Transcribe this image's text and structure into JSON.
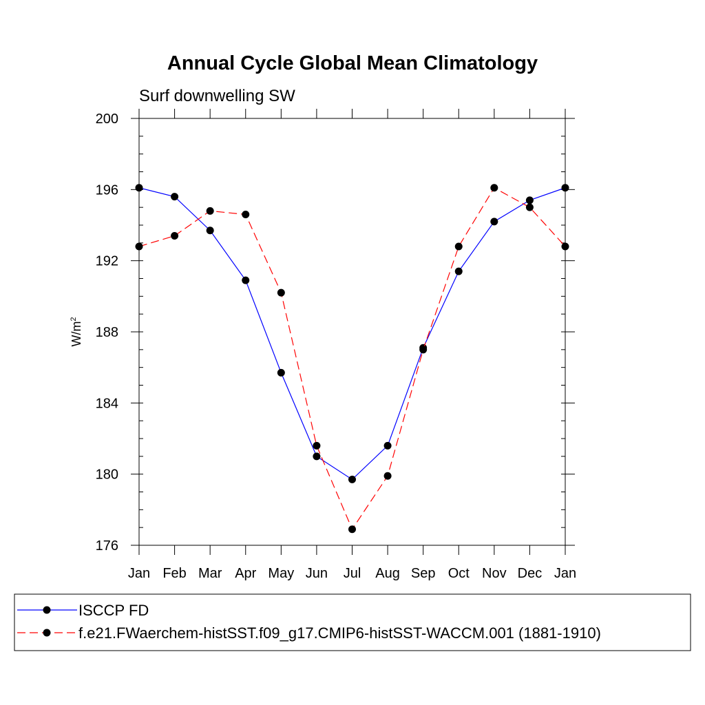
{
  "chart_data": {
    "type": "line",
    "title": "Annual Cycle Global Mean Climatology",
    "subtitle": "Surf downwelling SW",
    "ylabel_base": "W/m",
    "ylabel_sup": "2",
    "xlabel": "",
    "categories": [
      "Jan",
      "Feb",
      "Mar",
      "Apr",
      "May",
      "Jun",
      "Jul",
      "Aug",
      "Sep",
      "Oct",
      "Nov",
      "Dec",
      "Jan"
    ],
    "ylim": [
      176,
      200
    ],
    "yticks": [
      176,
      180,
      184,
      188,
      192,
      196,
      200
    ],
    "yminor_step": 1,
    "grid": false,
    "legend_position": "bottom",
    "series": [
      {
        "name": "ISCCP FD",
        "color": "#0000ff",
        "dash": "solid",
        "values": [
          196.1,
          195.6,
          193.7,
          190.9,
          185.7,
          181.0,
          179.7,
          181.6,
          187.1,
          191.4,
          194.2,
          195.4,
          196.1
        ]
      },
      {
        "name": "f.e21.FWaerchem-histSST.f09_g17.CMIP6-histSST-WACCM.001 (1881-1910)",
        "color": "#ff0000",
        "dash": "dashed",
        "values": [
          192.8,
          193.4,
          194.8,
          194.6,
          190.2,
          181.6,
          176.9,
          179.9,
          187.0,
          192.8,
          196.1,
          195.0,
          192.8
        ]
      }
    ]
  }
}
